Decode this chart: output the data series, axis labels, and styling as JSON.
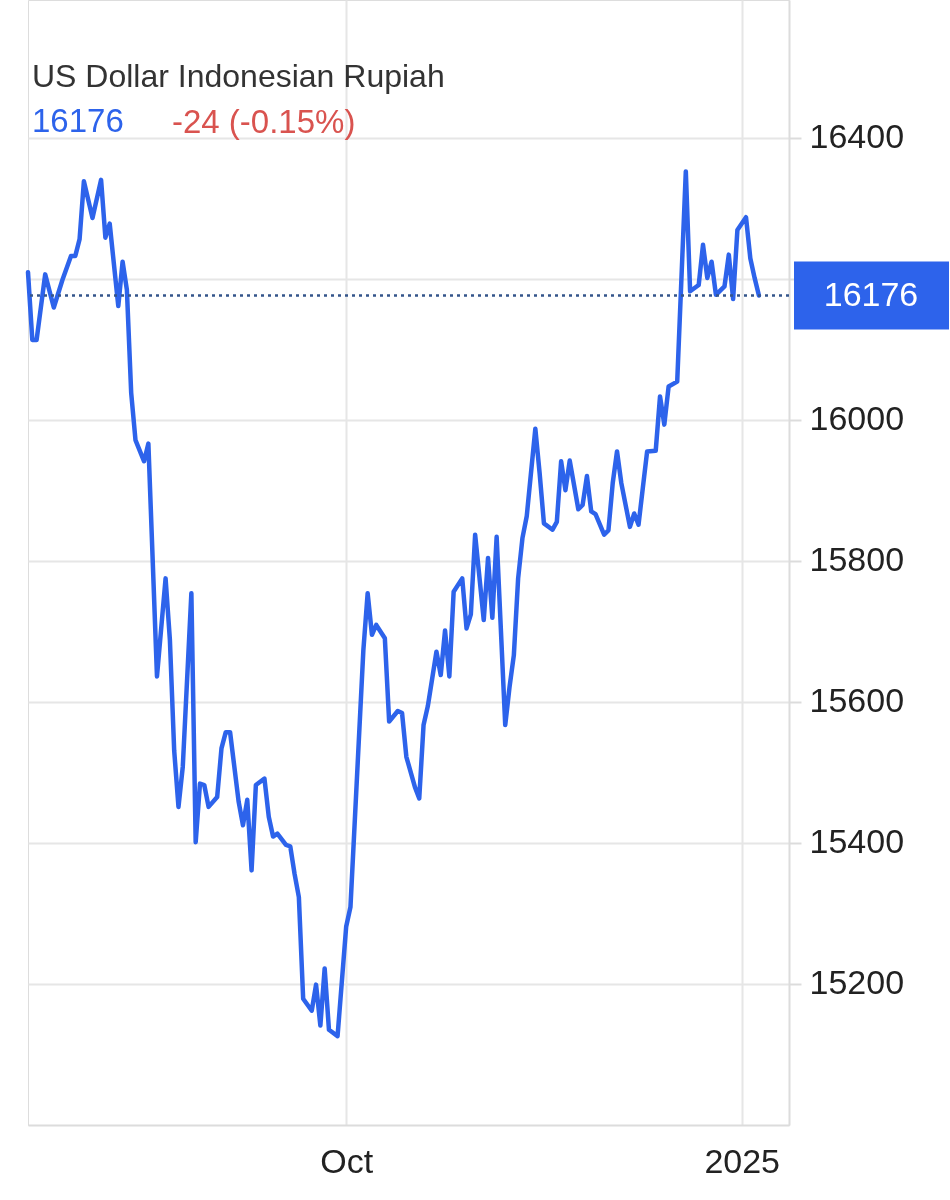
{
  "chart_data": {
    "type": "line",
    "title": "US Dollar Indonesian Rupiah",
    "subtitle": "16176",
    "annotations": [
      "-24 (-0.15%)"
    ],
    "x": [
      "2024-07-19",
      "2024-07-20",
      "2024-07-21",
      "2024-07-23",
      "2024-07-25",
      "2024-07-27",
      "2024-07-29",
      "2024-07-30",
      "2024-07-31",
      "2024-08-01",
      "2024-08-03",
      "2024-08-05",
      "2024-08-06",
      "2024-08-07",
      "2024-08-09",
      "2024-08-10",
      "2024-08-11",
      "2024-08-12",
      "2024-08-13",
      "2024-08-15",
      "2024-08-16",
      "2024-08-18",
      "2024-08-20",
      "2024-08-21",
      "2024-08-22",
      "2024-08-23",
      "2024-08-24",
      "2024-08-26",
      "2024-08-27",
      "2024-08-28",
      "2024-08-29",
      "2024-08-30",
      "2024-09-01",
      "2024-09-02",
      "2024-09-03",
      "2024-09-04",
      "2024-09-06",
      "2024-09-07",
      "2024-09-08",
      "2024-09-09",
      "2024-09-10",
      "2024-09-12",
      "2024-09-13",
      "2024-09-14",
      "2024-09-15",
      "2024-09-17",
      "2024-09-18",
      "2024-09-19",
      "2024-09-20",
      "2024-09-21",
      "2024-09-23",
      "2024-09-24",
      "2024-09-25",
      "2024-09-26",
      "2024-09-27",
      "2024-09-29",
      "2024-10-01",
      "2024-10-02",
      "2024-10-05",
      "2024-10-06",
      "2024-10-07",
      "2024-10-08",
      "2024-10-10",
      "2024-10-11",
      "2024-10-13",
      "2024-10-14",
      "2024-10-15",
      "2024-10-17",
      "2024-10-18",
      "2024-10-19",
      "2024-10-20",
      "2024-10-22",
      "2024-10-23",
      "2024-10-24",
      "2024-10-25",
      "2024-10-26",
      "2024-10-28",
      "2024-10-29",
      "2024-10-30",
      "2024-10-31",
      "2024-11-02",
      "2024-11-03",
      "2024-11-04",
      "2024-11-05",
      "2024-11-07",
      "2024-11-08",
      "2024-11-09",
      "2024-11-10",
      "2024-11-11",
      "2024-11-12",
      "2024-11-14",
      "2024-11-15",
      "2024-11-16",
      "2024-11-18",
      "2024-11-19",
      "2024-11-20",
      "2024-11-21",
      "2024-11-22",
      "2024-11-24",
      "2024-11-25",
      "2024-11-26",
      "2024-11-27",
      "2024-11-28",
      "2024-11-30",
      "2024-12-01",
      "2024-12-02",
      "2024-12-03",
      "2024-12-04",
      "2024-12-06",
      "2024-12-07",
      "2024-12-08",
      "2024-12-09",
      "2024-12-10",
      "2024-12-12",
      "2024-12-13",
      "2024-12-14",
      "2024-12-15",
      "2024-12-17",
      "2024-12-19",
      "2024-12-20",
      "2024-12-22",
      "2024-12-23",
      "2024-12-24",
      "2024-12-25",
      "2024-12-26",
      "2024-12-28",
      "2024-12-29",
      "2024-12-30",
      "2024-12-31",
      "2025-01-02",
      "2025-01-03",
      "2025-01-04",
      "2025-01-05"
    ],
    "series": [
      {
        "color": "#2d63eb",
        "values": [
          16209,
          16113,
          16113,
          16206,
          16159,
          16198,
          16232,
          16232,
          16256,
          16338,
          16286,
          16340,
          16258,
          16278,
          16161,
          16224,
          16184,
          16038,
          15971,
          15941,
          15966,
          15636,
          15775,
          15688,
          15531,
          15451,
          15508,
          15754,
          15401,
          15484,
          15482,
          15451,
          15465,
          15534,
          15557,
          15557,
          15458,
          15425,
          15461,
          15361,
          15482,
          15491,
          15437,
          15409,
          15413,
          15397,
          15395,
          15356,
          15323,
          15179,
          15162,
          15199,
          15141,
          15222,
          15135,
          15126,
          15281,
          15309,
          15673,
          15754,
          15695,
          15709,
          15690,
          15572,
          15587,
          15584,
          15522,
          15479,
          15463,
          15567,
          15594,
          15671,
          15638,
          15701,
          15636,
          15756,
          15775,
          15704,
          15724,
          15837,
          15716,
          15804,
          15719,
          15834,
          15567,
          15621,
          15666,
          15775,
          15832,
          15863,
          15987,
          15924,
          15853,
          15844,
          15855,
          15941,
          15900,
          15942,
          15873,
          15879,
          15920,
          15870,
          15866,
          15837,
          15843,
          15910,
          15955,
          15910,
          15848,
          15867,
          15851,
          15903,
          15955,
          15956,
          16033,
          15993,
          16047,
          16054,
          16352,
          16182,
          16191,
          16248,
          16201,
          16224,
          16177,
          16189,
          16234,
          16171,
          16269,
          16287,
          16229,
          16201,
          16176
        ]
      }
    ],
    "xlim": [
      "2024-07-19",
      "2025-01-12"
    ],
    "xticks": [
      {
        "value": "2024-10-01",
        "label": "Oct"
      },
      {
        "value": "2025-01-01",
        "label": "2025"
      }
    ],
    "ylim": [
      15000,
      16595
    ],
    "yticks": [
      15200,
      15400,
      15600,
      15800,
      16000,
      {
        "value": 16200,
        "label": null
      },
      16400
    ],
    "grid": true,
    "line_style": "solid",
    "ref_lines": [
      {
        "axis": "y",
        "value": 16176,
        "label": "16176",
        "color": "#34558b",
        "line_style": "dotted"
      }
    ]
  }
}
